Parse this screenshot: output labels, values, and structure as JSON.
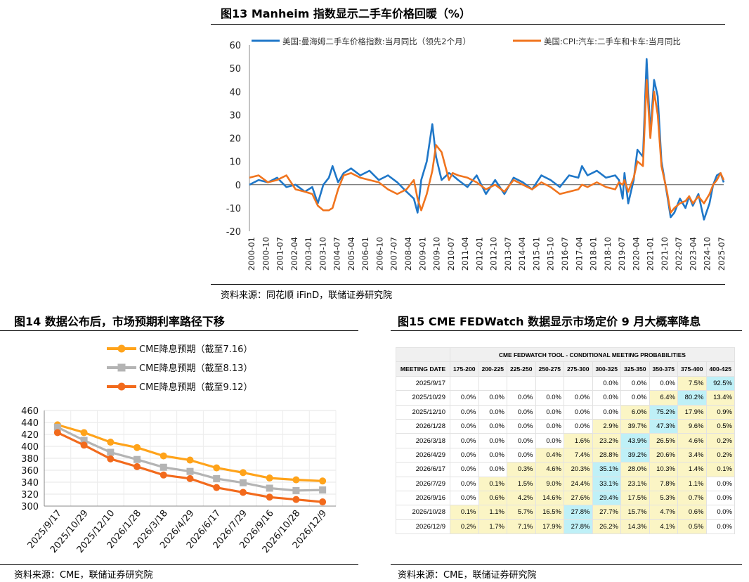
{
  "fig13": {
    "title": "图13 Manheim 指数显示二手车价格回暖（%）",
    "source": "资料来源：同花顺 iFinD，联储证券研究院"
  },
  "fig14": {
    "title": "图14 数据公布后，市场预期利率路径下移",
    "source": "资料来源：CME，联储证券研究院"
  },
  "fig15": {
    "title": "图15 CME FEDWatch 数据显示市场定价 9 月大概率降息",
    "source": "资料来源：CME，联储证券研究院",
    "table": {
      "tool_title": "CME FEDWATCH TOOL - CONDITIONAL MEETING PROBABILITIES",
      "date_header": "MEETING DATE",
      "columns": [
        "175-200",
        "200-225",
        "225-250",
        "250-275",
        "275-300",
        "300-325",
        "325-350",
        "350-375",
        "375-400",
        "400-425"
      ],
      "rows": [
        {
          "date": "2025/9/17",
          "cells": [
            "",
            "",
            "",
            "",
            "",
            "0.0%",
            "0.0%",
            "0.0%",
            "7.5%",
            "92.5%"
          ]
        },
        {
          "date": "2025/10/29",
          "cells": [
            "0.0%",
            "0.0%",
            "0.0%",
            "0.0%",
            "0.0%",
            "0.0%",
            "0.0%",
            "6.4%",
            "80.2%",
            "13.4%"
          ]
        },
        {
          "date": "2025/12/10",
          "cells": [
            "0.0%",
            "0.0%",
            "0.0%",
            "0.0%",
            "0.0%",
            "0.0%",
            "6.0%",
            "75.2%",
            "17.9%",
            "0.9%"
          ]
        },
        {
          "date": "2026/1/28",
          "cells": [
            "0.0%",
            "0.0%",
            "0.0%",
            "0.0%",
            "0.0%",
            "2.9%",
            "39.7%",
            "47.3%",
            "9.6%",
            "0.5%"
          ]
        },
        {
          "date": "2026/3/18",
          "cells": [
            "0.0%",
            "0.0%",
            "0.0%",
            "0.0%",
            "1.6%",
            "23.2%",
            "43.9%",
            "26.5%",
            "4.6%",
            "0.2%"
          ]
        },
        {
          "date": "2026/4/29",
          "cells": [
            "0.0%",
            "0.0%",
            "0.0%",
            "0.4%",
            "7.4%",
            "28.8%",
            "39.2%",
            "20.6%",
            "3.4%",
            "0.2%"
          ]
        },
        {
          "date": "2026/6/17",
          "cells": [
            "0.0%",
            "0.0%",
            "0.3%",
            "4.6%",
            "20.3%",
            "35.1%",
            "28.0%",
            "10.3%",
            "1.4%",
            "0.1%"
          ]
        },
        {
          "date": "2026/7/29",
          "cells": [
            "0.0%",
            "0.1%",
            "1.5%",
            "9.0%",
            "24.4%",
            "33.1%",
            "23.1%",
            "7.8%",
            "1.1%",
            "0.0%"
          ]
        },
        {
          "date": "2026/9/16",
          "cells": [
            "0.0%",
            "0.6%",
            "4.2%",
            "14.6%",
            "27.6%",
            "29.4%",
            "17.5%",
            "5.3%",
            "0.7%",
            "0.0%"
          ]
        },
        {
          "date": "2026/10/28",
          "cells": [
            "0.1%",
            "1.1%",
            "5.7%",
            "16.5%",
            "27.8%",
            "27.7%",
            "15.7%",
            "4.7%",
            "0.6%",
            "0.0%"
          ]
        },
        {
          "date": "2026/12/9",
          "cells": [
            "0.2%",
            "1.7%",
            "7.1%",
            "17.9%",
            "27.8%",
            "26.2%",
            "14.3%",
            "4.1%",
            "0.5%",
            "0.0%"
          ]
        }
      ]
    }
  },
  "chart_data": [
    {
      "id": "fig13",
      "type": "line",
      "title": "图13 Manheim 指数显示二手车价格回暖（%）",
      "ylim": [
        -20,
        60
      ],
      "yticks": [
        -20,
        -10,
        0,
        10,
        20,
        30,
        40,
        50,
        60
      ],
      "x_tick_labels": [
        "2000-01",
        "2000-10",
        "2001-07",
        "2002-04",
        "2003-01",
        "2003-10",
        "2004-07",
        "2005-04",
        "2006-01",
        "2006-10",
        "2007-07",
        "2008-04",
        "2009-01",
        "2009-10",
        "2010-07",
        "2011-04",
        "2012-01",
        "2012-10",
        "2013-07",
        "2014-04",
        "2015-01",
        "2015-10",
        "2016-07",
        "2017-04",
        "2018-01",
        "2018-10",
        "2019-07",
        "2020-04",
        "2021-01",
        "2021-10",
        "2022-07",
        "2023-04",
        "2024-10",
        "2025-07"
      ],
      "x_start": 2000.0,
      "x_end": 2025.67,
      "legend_position": "top",
      "series": [
        {
          "name": "美国:曼海姆二手车价格指数:当月同比（领先2个月）",
          "color": "#1f77c8",
          "x": [
            2000.0,
            2000.5,
            2001.0,
            2001.5,
            2002.0,
            2002.5,
            2003.0,
            2003.4,
            2003.7,
            2004.0,
            2004.3,
            2004.5,
            2004.8,
            2005.1,
            2005.5,
            2006.0,
            2006.5,
            2007.0,
            2007.5,
            2008.0,
            2008.5,
            2008.9,
            2009.1,
            2009.3,
            2009.6,
            2009.9,
            2010.1,
            2010.4,
            2010.8,
            2011.0,
            2011.3,
            2011.8,
            2012.3,
            2012.8,
            2013.3,
            2013.8,
            2014.3,
            2014.8,
            2015.3,
            2015.8,
            2016.3,
            2016.8,
            2017.3,
            2017.8,
            2018.0,
            2018.3,
            2018.8,
            2019.3,
            2019.8,
            2020.0,
            2020.2,
            2020.3,
            2020.5,
            2020.8,
            2021.0,
            2021.3,
            2021.5,
            2021.7,
            2021.9,
            2022.1,
            2022.3,
            2022.6,
            2022.8,
            2023.0,
            2023.3,
            2023.6,
            2023.8,
            2024.0,
            2024.3,
            2024.6,
            2024.9,
            2025.1,
            2025.3,
            2025.5,
            2025.67
          ],
          "y": [
            0,
            2,
            1,
            3,
            -1,
            0,
            -3,
            -1,
            -8,
            0,
            3,
            8,
            1,
            5,
            7,
            4,
            6,
            2,
            4,
            1,
            -3,
            -6,
            -12,
            2,
            10,
            26,
            12,
            2,
            5,
            4,
            2,
            -1,
            4,
            -4,
            2,
            -4,
            3,
            1,
            -2,
            4,
            2,
            -1,
            4,
            3,
            8,
            4,
            6,
            3,
            4,
            2,
            -6,
            5,
            -8,
            2,
            15,
            12,
            54,
            22,
            45,
            38,
            10,
            -4,
            -14,
            -12,
            -6,
            -10,
            -5,
            -9,
            -4,
            -15,
            -8,
            0,
            4,
            5,
            1
          ]
        },
        {
          "name": "美国:CPI:汽车:二手车和卡车:当月同比",
          "color": "#f0741e",
          "x": [
            2000.0,
            2000.5,
            2001.0,
            2001.5,
            2002.0,
            2002.5,
            2003.0,
            2003.4,
            2003.7,
            2004.0,
            2004.3,
            2004.5,
            2004.8,
            2005.1,
            2005.5,
            2006.0,
            2006.5,
            2007.0,
            2007.5,
            2008.0,
            2008.5,
            2008.9,
            2009.1,
            2009.3,
            2009.6,
            2009.9,
            2010.1,
            2010.4,
            2010.8,
            2011.0,
            2011.3,
            2011.8,
            2012.3,
            2012.8,
            2013.3,
            2013.8,
            2014.3,
            2014.8,
            2015.3,
            2015.8,
            2016.3,
            2016.8,
            2017.3,
            2017.8,
            2018.0,
            2018.3,
            2018.8,
            2019.3,
            2019.8,
            2020.0,
            2020.2,
            2020.3,
            2020.5,
            2020.8,
            2021.0,
            2021.3,
            2021.5,
            2021.7,
            2021.9,
            2022.1,
            2022.3,
            2022.6,
            2022.8,
            2023.0,
            2023.3,
            2023.6,
            2023.8,
            2024.0,
            2024.3,
            2024.6,
            2024.9,
            2025.1,
            2025.3,
            2025.5,
            2025.67
          ],
          "y": [
            3,
            4,
            1,
            2,
            4,
            -2,
            -3,
            -4,
            -9,
            -11,
            -11,
            -10,
            -2,
            4,
            5,
            3,
            2,
            1,
            -2,
            -4,
            -2,
            2,
            -6,
            -11,
            -4,
            6,
            17,
            14,
            2,
            5,
            4,
            3,
            1,
            -2,
            0,
            -3,
            2,
            0,
            -2,
            1,
            -1,
            -4,
            -3,
            -2,
            0,
            -1,
            1,
            -1,
            -2,
            1,
            0,
            2,
            -3,
            3,
            10,
            8,
            45,
            20,
            40,
            30,
            8,
            -3,
            -12,
            -10,
            -8,
            -7,
            -5,
            -8,
            -5,
            -8,
            -4,
            0,
            2,
            5,
            2
          ]
        }
      ]
    },
    {
      "id": "fig14",
      "type": "line",
      "title": "图14 数据公布后，市场预期利率路径下移",
      "ylim": [
        300,
        460
      ],
      "yticks": [
        300,
        320,
        340,
        360,
        380,
        400,
        420,
        440,
        460
      ],
      "categories": [
        "2025/9/17",
        "2025/10/29",
        "2025/12/10",
        "2026/1/28",
        "2026/3/18",
        "2026/4/29",
        "2026/6/17",
        "2026/7/29",
        "2026/9/16",
        "2026/10/28",
        "2026/12/9"
      ],
      "legend_position": "top",
      "series": [
        {
          "name": "CME降息预期（截至7.16）",
          "color": "#ffa31a",
          "values": [
            436,
            423,
            407,
            398,
            384,
            377,
            364,
            356,
            347,
            344,
            342
          ]
        },
        {
          "name": "CME降息预期（截至8.13）",
          "color": "#b4b4b4",
          "values": [
            432,
            410,
            390,
            378,
            365,
            358,
            346,
            339,
            330,
            326,
            327
          ]
        },
        {
          "name": "CME降息预期（截至9.12）",
          "color": "#f26a1c",
          "values": [
            423,
            402,
            379,
            366,
            352,
            346,
            331,
            323,
            315,
            311,
            307
          ]
        }
      ]
    }
  ]
}
